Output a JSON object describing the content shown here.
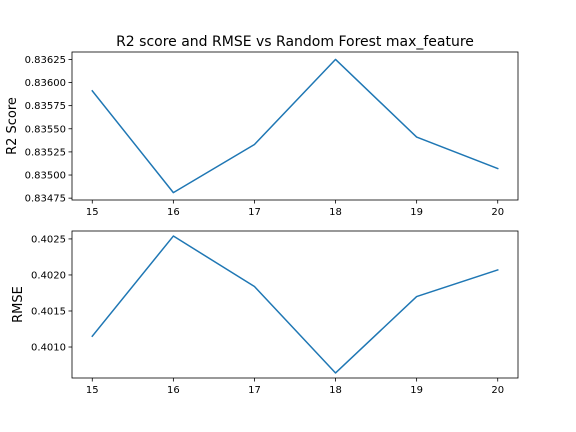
{
  "chart_data": [
    {
      "type": "line",
      "title": "R2 score and RMSE vs Random Forest max_feature",
      "xlabel": "",
      "ylabel": "R2 Score",
      "x": [
        15,
        16,
        17,
        18,
        19,
        20
      ],
      "series": [
        {
          "values": [
            0.83591,
            0.83481,
            0.83533,
            0.83625,
            0.83541,
            0.83507
          ],
          "color": "#1f77b4"
        }
      ],
      "x_ticks": [
        "15",
        "16",
        "17",
        "18",
        "19",
        "20"
      ],
      "y_ticks": [
        "0.83475",
        "0.83500",
        "0.83525",
        "0.83550",
        "0.83575",
        "0.83600",
        "0.83625"
      ],
      "xlim": [
        14.75,
        20.25
      ],
      "ylim": [
        0.83473,
        0.83633
      ],
      "grid": false
    },
    {
      "type": "line",
      "title": "",
      "xlabel": "",
      "ylabel": "RMSE",
      "x": [
        15,
        16,
        17,
        18,
        19,
        20
      ],
      "series": [
        {
          "values": [
            0.40115,
            0.40254,
            0.40184,
            0.40064,
            0.4017,
            0.40207
          ],
          "color": "#1f77b4"
        }
      ],
      "x_ticks": [
        "15",
        "16",
        "17",
        "18",
        "19",
        "20"
      ],
      "y_ticks": [
        "0.4010",
        "0.4015",
        "0.4020",
        "0.4025"
      ],
      "xlim": [
        14.75,
        20.25
      ],
      "ylim": [
        0.40057,
        0.40261
      ],
      "grid": false
    }
  ]
}
